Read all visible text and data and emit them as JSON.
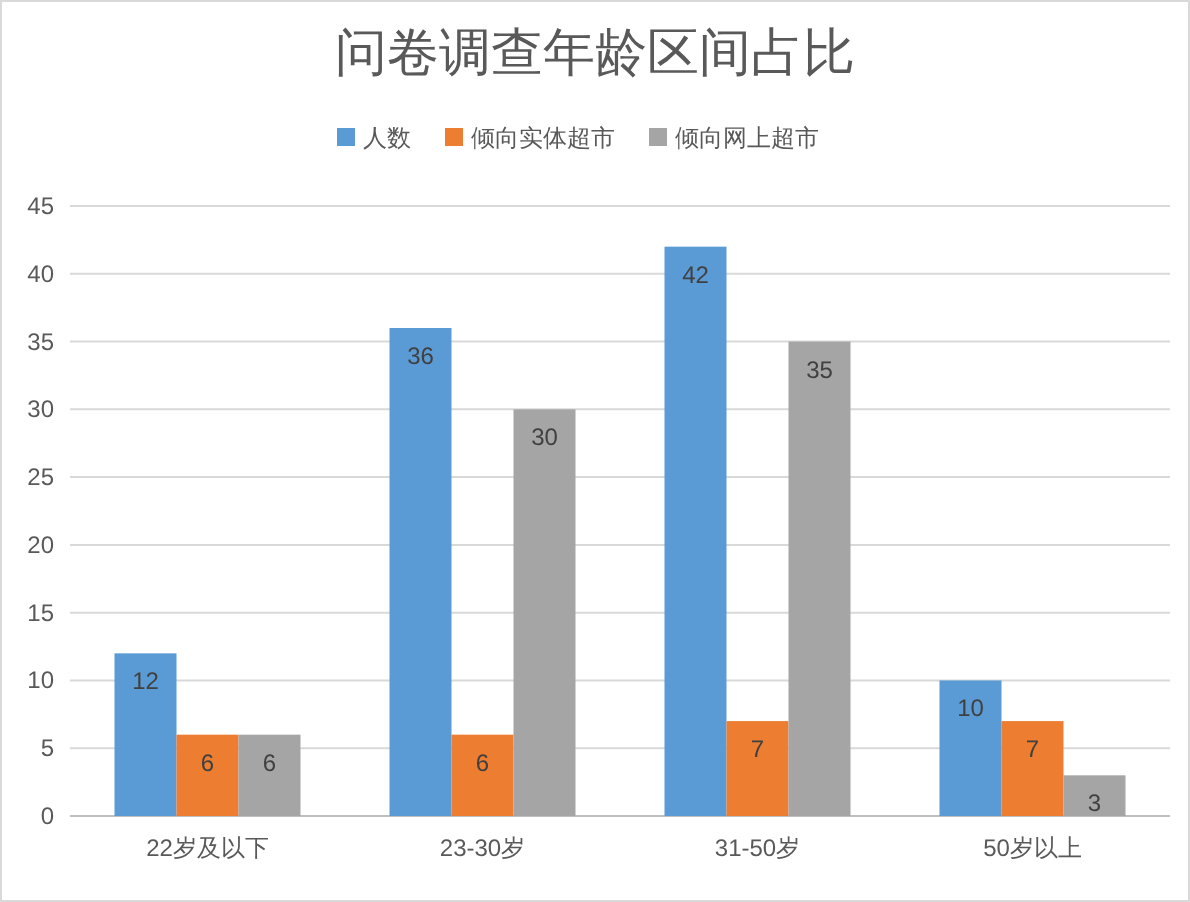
{
  "chart_data": {
    "type": "bar",
    "title": "问卷调查年龄区间占比",
    "categories": [
      "22岁及以下",
      "23-30岁",
      "31-50岁",
      "50岁以上"
    ],
    "series": [
      {
        "name": "人数",
        "color": "#5b9bd5",
        "values": [
          12,
          36,
          42,
          10
        ]
      },
      {
        "name": "倾向实体超市",
        "color": "#ed7d31",
        "values": [
          6,
          6,
          7,
          7
        ]
      },
      {
        "name": "倾向网上超市",
        "color": "#a5a5a5",
        "values": [
          6,
          30,
          35,
          3
        ]
      }
    ],
    "ylim": [
      0,
      45
    ],
    "yticks": [
      0,
      5,
      10,
      15,
      20,
      25,
      30,
      35,
      40,
      45
    ],
    "grid": "y",
    "legend": "top",
    "data_labels": true
  }
}
